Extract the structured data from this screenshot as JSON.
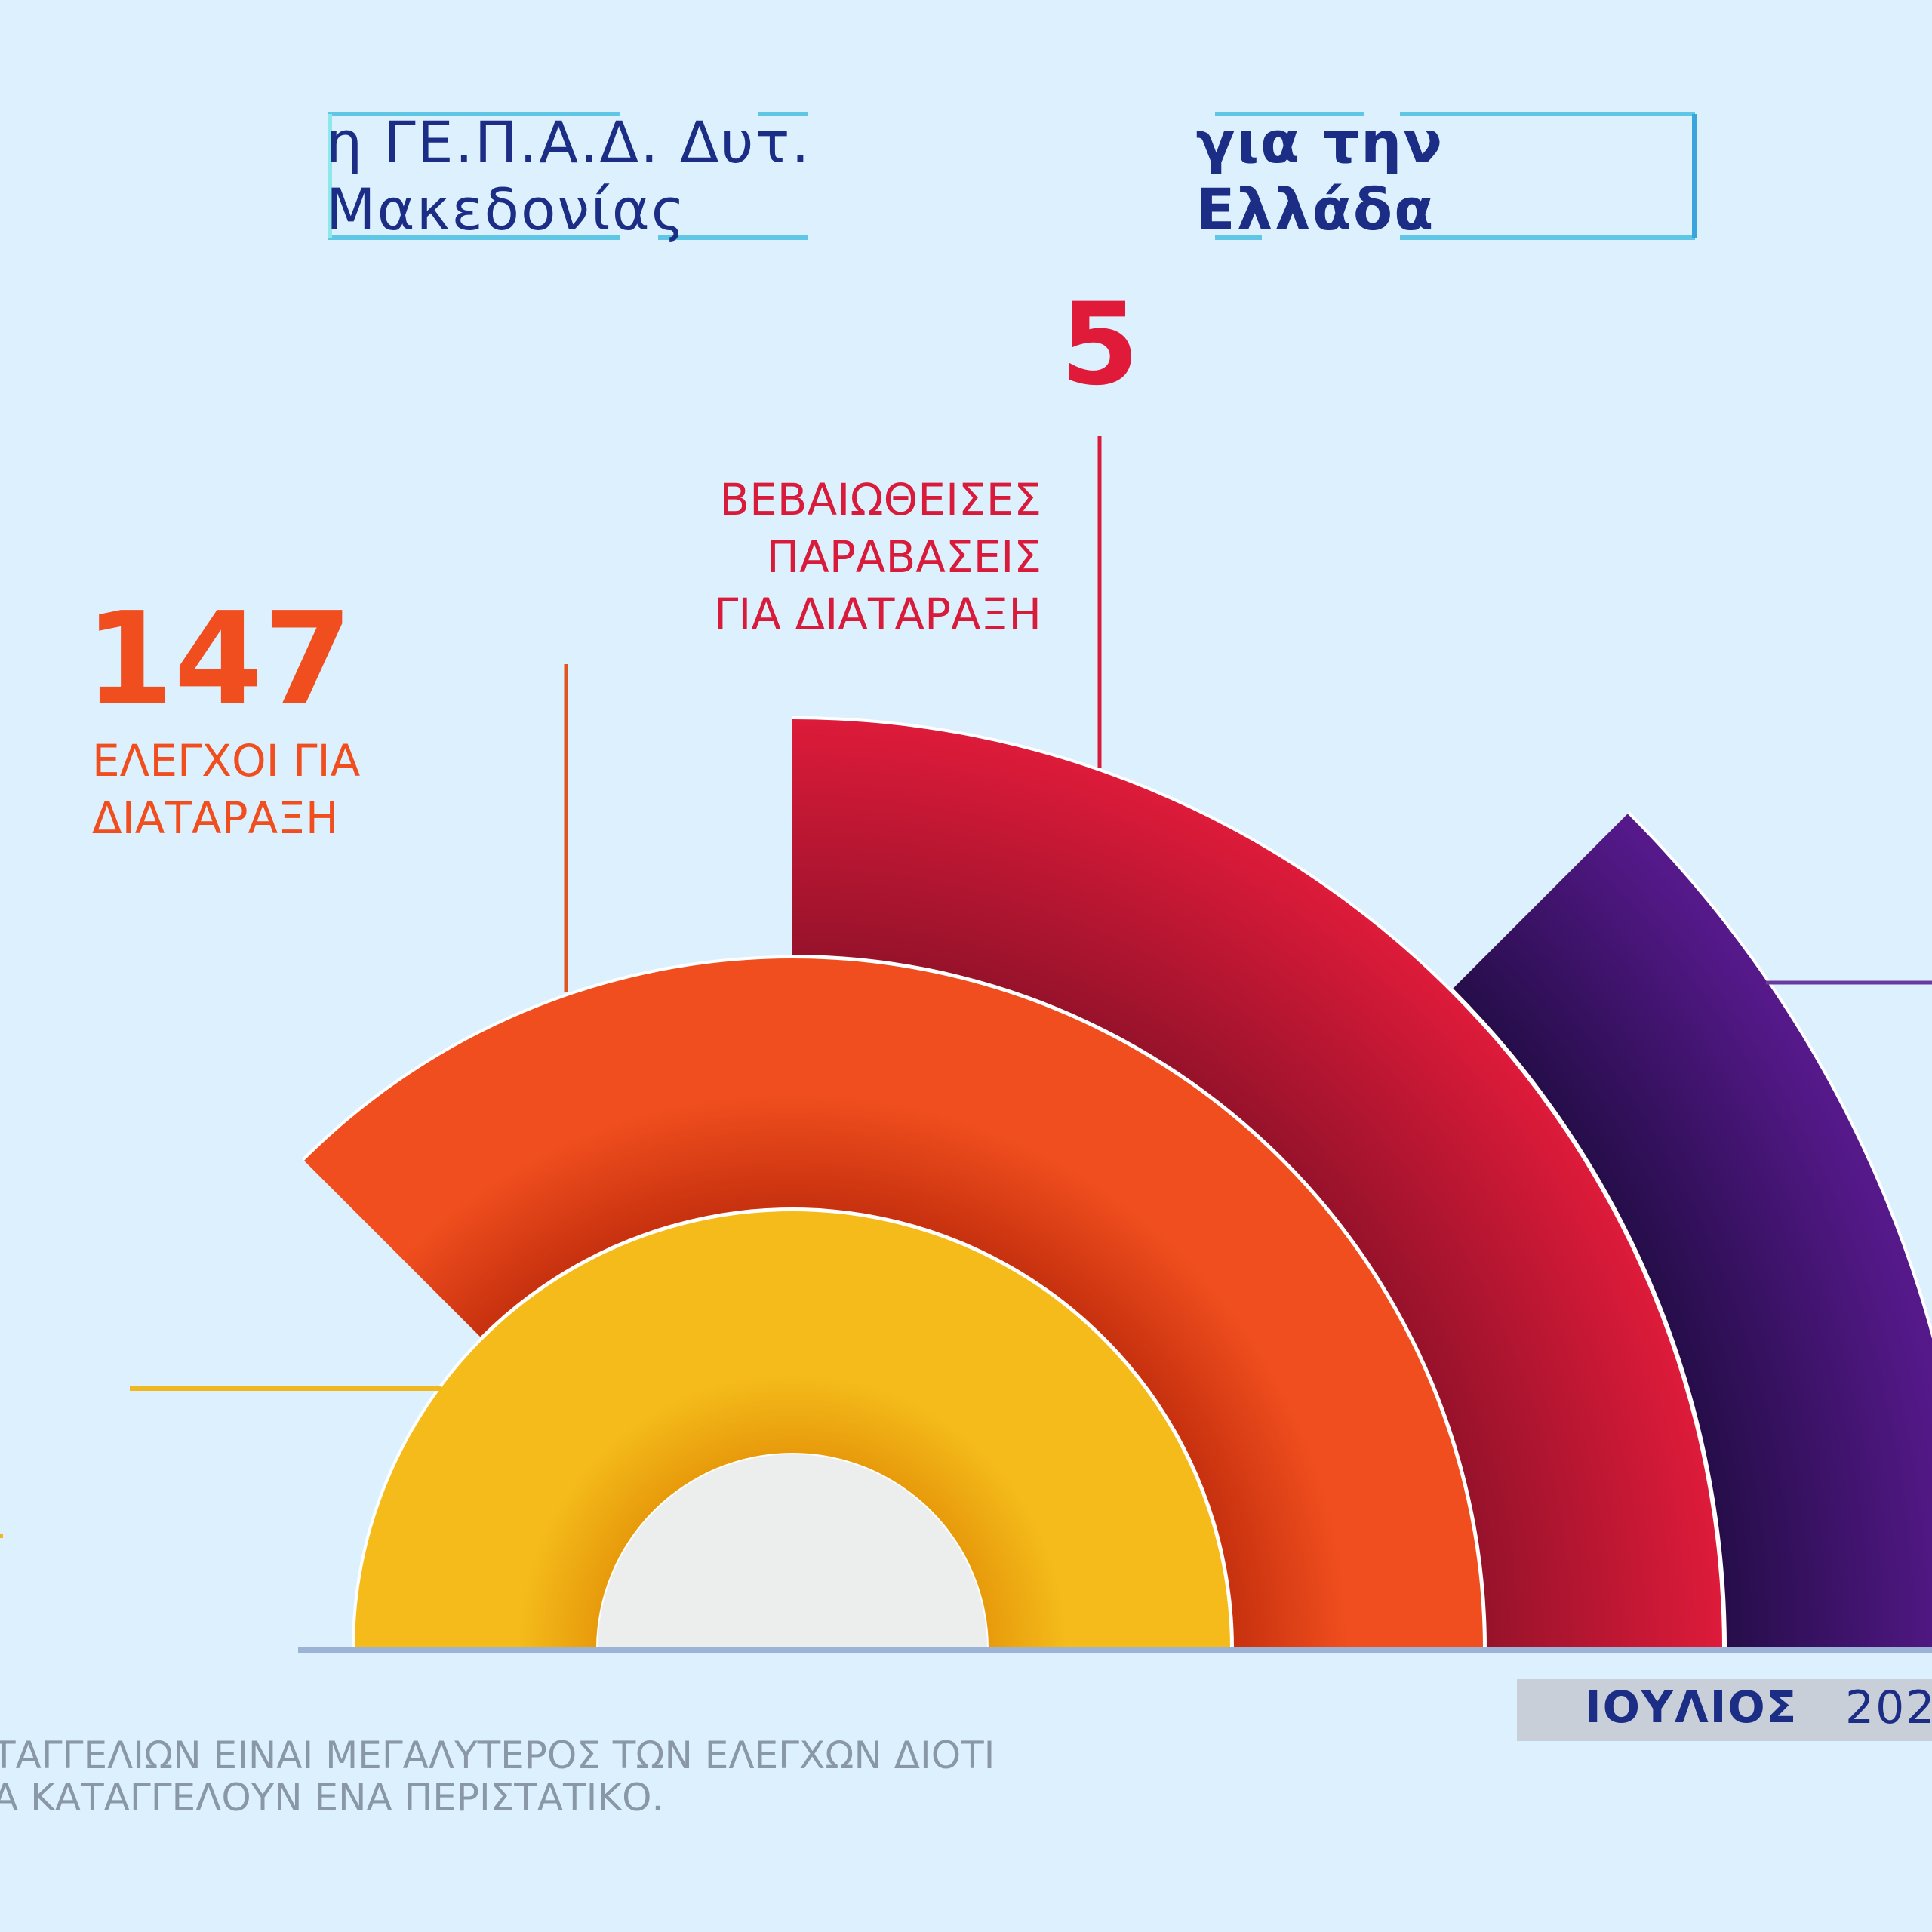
{
  "header": {
    "title_regular": "η ΓΕ.Π.Α.Δ. Δυτ. Μακεδονίας",
    "title_bold": "για την Ελλάδα"
  },
  "chart_data": {
    "type": "radial-bar",
    "title": "η ΓΕ.Π.Α.Δ. Δυτ. Μακεδονίας για την Ελλάδα",
    "series": [
      {
        "label": "",
        "value": null,
        "color": "#f4bb1a"
      },
      {
        "label": "ΕΛΕΓΧΟΙ ΓΙΑ\nΔΙΑΤΑΡΑΞΗ",
        "value": 147,
        "color": "#f04e1e"
      },
      {
        "label": "ΒΕΒΑΙΩΘΕΙΣΕΣ\nΠΑΡΑΒΑΣΕΙΣ\nΓΙΑ ΔΙΑΤΑΡΑΞΗ",
        "value": 5,
        "color": "#d81b3a"
      },
      {
        "label": "",
        "value": null,
        "color": "#4e1a80"
      }
    ],
    "values_display": {
      "checks": "147",
      "violations": "5"
    },
    "colors": {
      "background": "#dcf1fd",
      "navy": "#1c2d86",
      "yellow": "#f4bb1a",
      "orange": "#f04e1e",
      "red": "#d81b3a",
      "purple": "#4e1a80",
      "center": "#eceeed"
    }
  },
  "period": {
    "month": "ΙΟΥΛΙΟΣ",
    "year": "202"
  },
  "footnote": "ΤΑΓΓΕΛΙΩΝ ΕΙΝΑΙ ΜΕΓΑΛΥΤΕΡΟΣ ΤΩΝ ΕΛΕΓΧΩΝ ΔΙΟΤΙ\nΑ ΚΑΤΑΓΓΕΛΟΥΝ ΕΝΑ ΠΕΡΙΣΤΑΤΙΚΟ."
}
